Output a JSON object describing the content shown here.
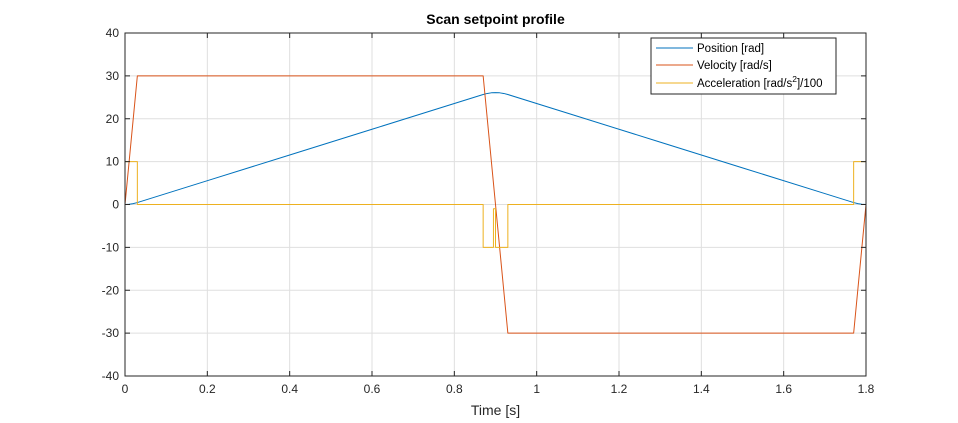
{
  "chart_data": {
    "type": "line",
    "title": "Scan setpoint profile",
    "xlabel": "Time [s]",
    "ylabel": "",
    "xlim": [
      0,
      1.8
    ],
    "ylim": [
      -40,
      40
    ],
    "xticks": [
      0,
      0.2,
      0.4,
      0.6,
      0.8,
      1,
      1.2,
      1.4,
      1.6,
      1.8
    ],
    "xtick_labels": [
      "0",
      "0.2",
      "0.4",
      "0.6",
      "0.8",
      "1",
      "1.2",
      "1.4",
      "1.6",
      "1.8"
    ],
    "yticks": [
      -40,
      -30,
      -20,
      -10,
      0,
      10,
      20,
      30,
      40
    ],
    "ytick_labels": [
      "-40",
      "-30",
      "-20",
      "-10",
      "0",
      "10",
      "20",
      "30",
      "40"
    ],
    "grid": true,
    "legend_position": "top-right",
    "series": [
      {
        "name": "Position [rad]",
        "color": "#0072BD",
        "x": [
          0,
          0.01,
          0.02,
          0.03,
          0.2,
          0.4,
          0.6,
          0.8,
          0.87,
          0.88,
          0.89,
          0.9,
          0.91,
          0.92,
          0.93,
          1.1,
          1.3,
          1.5,
          1.7,
          1.77,
          1.78,
          1.79,
          1.8
        ],
        "y": [
          0,
          0.05,
          0.2,
          0.45,
          5.55,
          11.55,
          17.55,
          23.55,
          25.65,
          25.9,
          26.05,
          26.1,
          26.05,
          25.9,
          25.65,
          20.55,
          14.55,
          8.55,
          2.55,
          0.45,
          0.2,
          0.05,
          0
        ]
      },
      {
        "name": "Velocity [rad/s]",
        "color": "#D95319",
        "x": [
          0,
          0.03,
          0.87,
          0.93,
          1.77,
          1.8
        ],
        "y": [
          0,
          30,
          30,
          -30,
          -30,
          0
        ]
      },
      {
        "name": "Acceleration [rad/s²]/100",
        "legend_prefix": "Acceleration [rad/s",
        "legend_sup": "2",
        "legend_suffix": "]/100",
        "color": "#EDB120",
        "x": [
          0,
          0,
          0.03,
          0.03,
          0.87,
          0.87,
          0.895,
          0.895,
          0.9,
          0.9,
          0.905,
          0.905,
          0.93,
          0.93,
          1.77,
          1.77,
          1.8,
          1.8
        ],
        "y": [
          0,
          10,
          10,
          0,
          0,
          -10,
          -10,
          -1,
          -1,
          -10,
          -10,
          -10,
          -10,
          0,
          0,
          10,
          10,
          0
        ]
      }
    ]
  }
}
